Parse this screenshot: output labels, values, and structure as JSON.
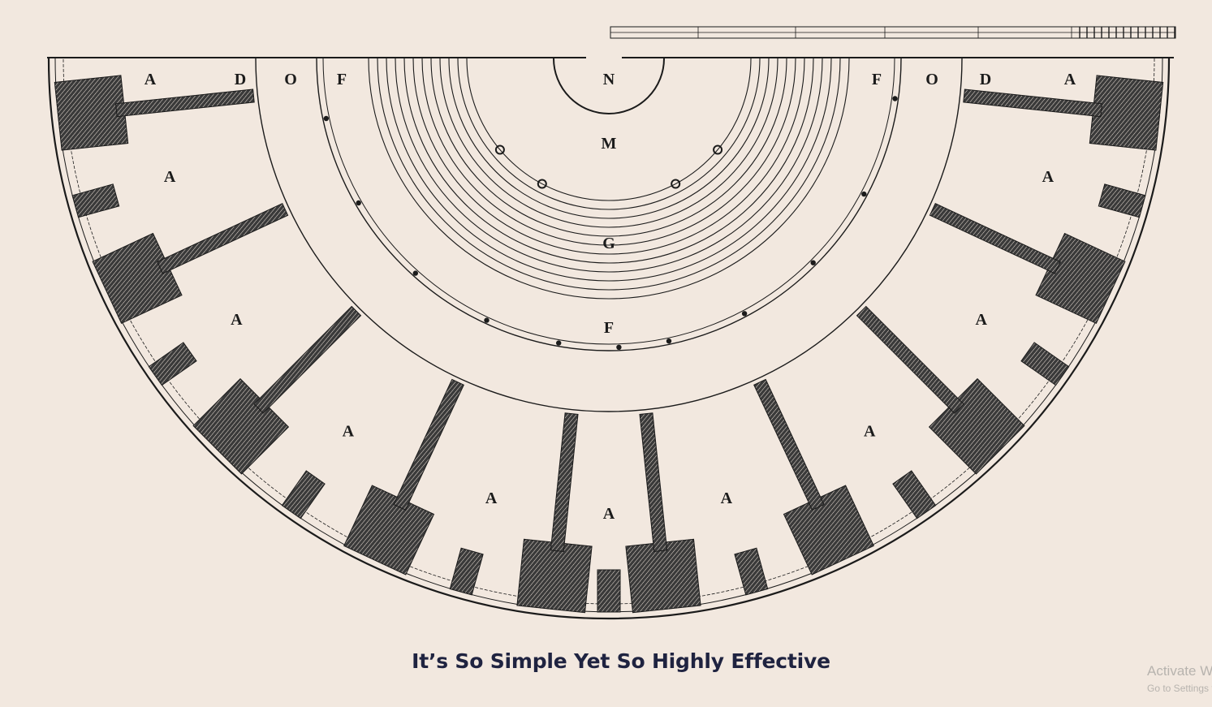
{
  "diagram": {
    "labels": {
      "top_left": [
        "A",
        "D",
        "O",
        "F"
      ],
      "top_right": [
        "F",
        "O",
        "D",
        "A"
      ],
      "center": [
        "N",
        "M",
        "G",
        "F"
      ],
      "cell": "A"
    },
    "colors": {
      "background": "#f2e8df",
      "ink": "#1b1b1b"
    }
  },
  "caption": "It’s So Simple Yet So Highly Effective",
  "watermark": {
    "line1": "Activate Windows",
    "line2": "Go to Settings to activate Windows."
  }
}
